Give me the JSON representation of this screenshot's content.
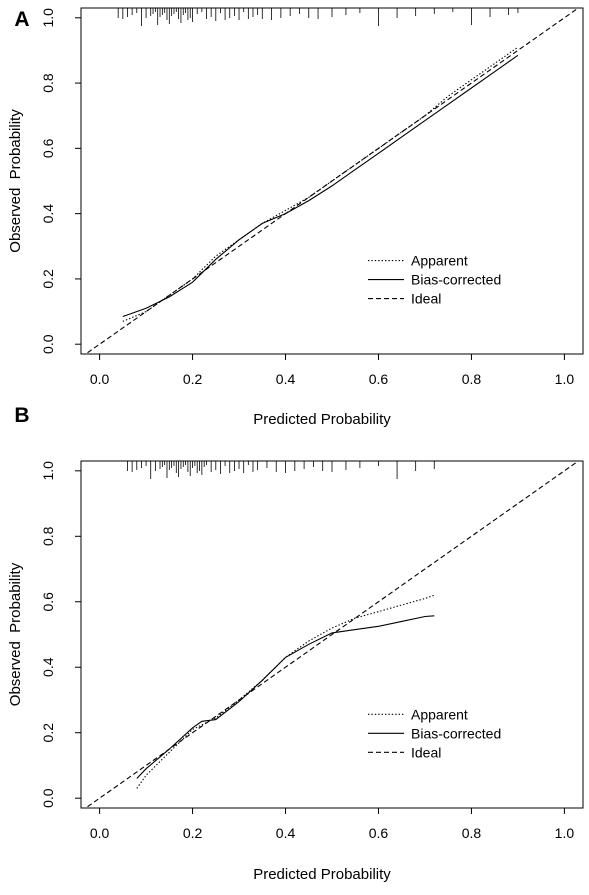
{
  "chart_data": [
    {
      "type": "line",
      "panel_label": "A",
      "xlabel": "Predicted Probability",
      "ylabel": "Observed  Probability",
      "xlim": [
        -0.04,
        1.04
      ],
      "ylim": [
        -0.03,
        1.03
      ],
      "xticks": [
        "0.0",
        "0.2",
        "0.4",
        "0.6",
        "0.8",
        "1.0"
      ],
      "yticks": [
        "0.0",
        "0.2",
        "0.4",
        "0.6",
        "0.8",
        "1.0"
      ],
      "legend": {
        "position": "bottom-right",
        "entries": [
          "Apparent",
          "Bias-corrected",
          "Ideal"
        ]
      },
      "rug": [
        0.04,
        0.05,
        0.06,
        0.07,
        0.08,
        0.09,
        0.1,
        0.11,
        0.115,
        0.12,
        0.125,
        0.13,
        0.135,
        0.14,
        0.145,
        0.15,
        0.155,
        0.16,
        0.165,
        0.17,
        0.175,
        0.18,
        0.185,
        0.19,
        0.195,
        0.2,
        0.21,
        0.22,
        0.23,
        0.24,
        0.25,
        0.26,
        0.27,
        0.28,
        0.29,
        0.3,
        0.31,
        0.32,
        0.33,
        0.34,
        0.35,
        0.37,
        0.39,
        0.41,
        0.43,
        0.45,
        0.47,
        0.5,
        0.53,
        0.56,
        0.6,
        0.64,
        0.68,
        0.72,
        0.76,
        0.8,
        0.84,
        0.88,
        0.9
      ],
      "series": [
        {
          "name": "Apparent",
          "style": "dotted",
          "x": [
            0.05,
            0.1,
            0.15,
            0.2,
            0.25,
            0.3,
            0.35,
            0.4,
            0.45,
            0.5,
            0.55,
            0.6,
            0.65,
            0.7,
            0.75,
            0.8,
            0.85,
            0.9
          ],
          "y": [
            0.07,
            0.1,
            0.15,
            0.2,
            0.27,
            0.32,
            0.37,
            0.41,
            0.45,
            0.5,
            0.55,
            0.6,
            0.65,
            0.7,
            0.76,
            0.81,
            0.86,
            0.91
          ]
        },
        {
          "name": "Bias-corrected",
          "style": "solid",
          "x": [
            0.05,
            0.1,
            0.15,
            0.2,
            0.25,
            0.3,
            0.35,
            0.4,
            0.45,
            0.5,
            0.55,
            0.6,
            0.65,
            0.7,
            0.75,
            0.8,
            0.85,
            0.9
          ],
          "y": [
            0.085,
            0.11,
            0.145,
            0.19,
            0.26,
            0.32,
            0.37,
            0.4,
            0.44,
            0.485,
            0.535,
            0.585,
            0.635,
            0.685,
            0.735,
            0.785,
            0.835,
            0.885
          ]
        },
        {
          "name": "Ideal",
          "style": "dashed",
          "x": [
            -0.04,
            1.04
          ],
          "y": [
            -0.04,
            1.04
          ]
        }
      ]
    },
    {
      "type": "line",
      "panel_label": "B",
      "xlabel": "Predicted Probability",
      "ylabel": "Observed  Probability",
      "xlim": [
        -0.04,
        1.04
      ],
      "ylim": [
        -0.03,
        1.03
      ],
      "xticks": [
        "0.0",
        "0.2",
        "0.4",
        "0.6",
        "0.8",
        "1.0"
      ],
      "yticks": [
        "0.0",
        "0.2",
        "0.4",
        "0.6",
        "0.8",
        "1.0"
      ],
      "legend": {
        "position": "bottom-right",
        "entries": [
          "Apparent",
          "Bias-corrected",
          "Ideal"
        ]
      },
      "rug": [
        0.06,
        0.07,
        0.08,
        0.09,
        0.1,
        0.11,
        0.12,
        0.13,
        0.135,
        0.14,
        0.145,
        0.15,
        0.155,
        0.16,
        0.165,
        0.17,
        0.175,
        0.18,
        0.185,
        0.19,
        0.195,
        0.2,
        0.205,
        0.21,
        0.215,
        0.22,
        0.225,
        0.23,
        0.24,
        0.25,
        0.26,
        0.27,
        0.28,
        0.29,
        0.3,
        0.31,
        0.32,
        0.33,
        0.34,
        0.36,
        0.38,
        0.4,
        0.42,
        0.44,
        0.46,
        0.48,
        0.5,
        0.53,
        0.56,
        0.6,
        0.64,
        0.68,
        0.72
      ],
      "series": [
        {
          "name": "Apparent",
          "style": "dotted",
          "x": [
            0.08,
            0.1,
            0.15,
            0.2,
            0.25,
            0.3,
            0.35,
            0.4,
            0.45,
            0.5,
            0.55,
            0.6,
            0.65,
            0.7,
            0.72
          ],
          "y": [
            0.03,
            0.07,
            0.14,
            0.21,
            0.245,
            0.3,
            0.36,
            0.43,
            0.48,
            0.52,
            0.55,
            0.57,
            0.59,
            0.61,
            0.62
          ]
        },
        {
          "name": "Bias-corrected",
          "style": "solid",
          "x": [
            0.08,
            0.1,
            0.15,
            0.2,
            0.22,
            0.25,
            0.3,
            0.35,
            0.4,
            0.45,
            0.5,
            0.55,
            0.6,
            0.65,
            0.7,
            0.72
          ],
          "y": [
            0.06,
            0.09,
            0.15,
            0.215,
            0.235,
            0.24,
            0.295,
            0.36,
            0.43,
            0.47,
            0.505,
            0.515,
            0.525,
            0.54,
            0.555,
            0.557
          ]
        },
        {
          "name": "Ideal",
          "style": "dashed",
          "x": [
            -0.04,
            1.04
          ],
          "y": [
            -0.04,
            1.04
          ]
        }
      ]
    }
  ]
}
